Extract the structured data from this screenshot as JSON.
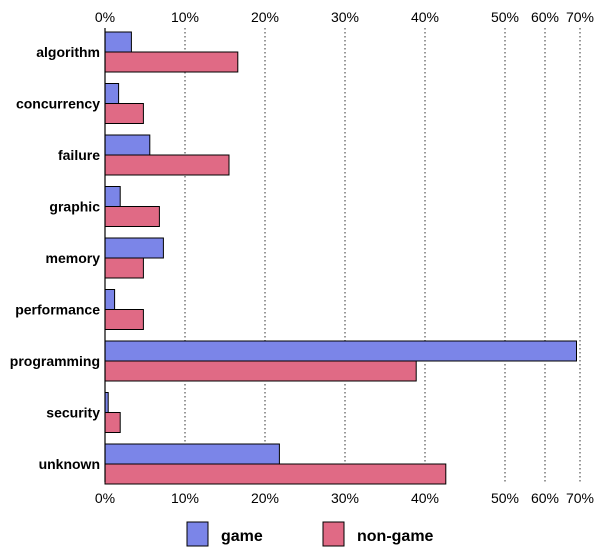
{
  "chart_data": {
    "type": "bar",
    "orientation": "horizontal",
    "x_scale": "piecewise-linear",
    "x_ticks": [
      0,
      10,
      20,
      30,
      40,
      50,
      60,
      70
    ],
    "x_tick_labels": [
      "0%",
      "10%",
      "20%",
      "30%",
      "40%",
      "50%",
      "60%",
      "70%"
    ],
    "grid": "vertical dotted",
    "legend_position": "bottom",
    "categories": [
      "algorithm",
      "concurrency",
      "failure",
      "graphic",
      "memory",
      "performance",
      "programming",
      "security",
      "unknown"
    ],
    "series": [
      {
        "name": "game",
        "color": "#7b85e8",
        "values": [
          3.3,
          1.7,
          5.6,
          1.9,
          7.3,
          1.2,
          69.0,
          0.4,
          21.8
        ]
      },
      {
        "name": "non-game",
        "color": "#e06a85",
        "values": [
          16.6,
          4.8,
          15.5,
          6.8,
          4.8,
          4.8,
          38.9,
          1.9,
          42.6
        ]
      }
    ]
  }
}
